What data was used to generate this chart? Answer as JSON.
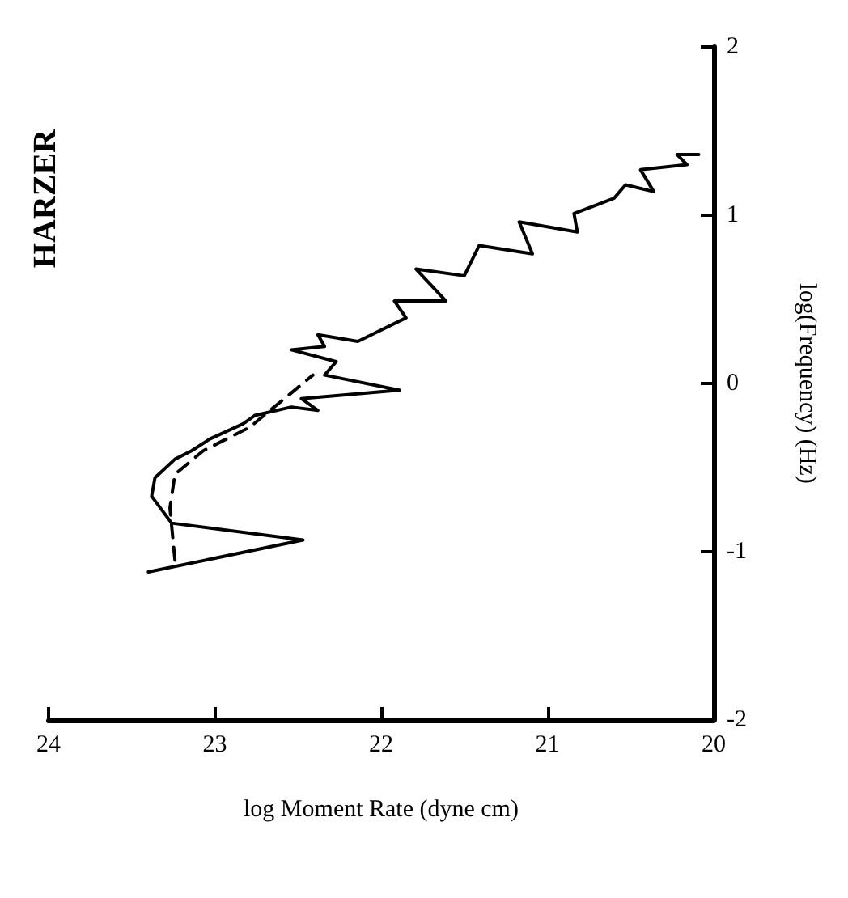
{
  "chart_data": {
    "type": "line",
    "title": "HARZER",
    "xlabel": "log Moment Rate (dyne cm)",
    "ylabel": "log(Frequency) (Hz)",
    "xlim": [
      24,
      20
    ],
    "xticks": [
      24,
      23,
      22,
      21,
      20
    ],
    "ylim": [
      -2,
      2
    ],
    "yticks": [
      -2,
      -1,
      0,
      1,
      2
    ],
    "marker": "none",
    "series": [
      {
        "color": "#000000",
        "line_style": "solid",
        "x": [
          23.4,
          22.47,
          23.26,
          23.38,
          23.36,
          23.24,
          23.14,
          23.03,
          22.83,
          22.76,
          22.54,
          22.38,
          22.48,
          21.89,
          22.34,
          22.27,
          22.54,
          22.34,
          22.38,
          22.14,
          21.85,
          21.92,
          21.61,
          21.79,
          21.5,
          21.41,
          21.09,
          21.17,
          20.82,
          20.84,
          20.6,
          20.53,
          20.36,
          20.44,
          20.16,
          20.22,
          20.09
        ],
        "values": [
          -1.12,
          -0.93,
          -0.83,
          -0.67,
          -0.56,
          -0.45,
          -0.4,
          -0.33,
          -0.24,
          -0.19,
          -0.14,
          -0.16,
          -0.09,
          -0.04,
          0.05,
          0.13,
          0.2,
          0.22,
          0.29,
          0.25,
          0.39,
          0.49,
          0.49,
          0.68,
          0.64,
          0.82,
          0.77,
          0.96,
          0.9,
          1.01,
          1.1,
          1.18,
          1.14,
          1.27,
          1.3,
          1.36,
          1.36
        ]
      },
      {
        "color": "#000000",
        "line_style": "dashed",
        "x": [
          23.24,
          23.27,
          23.24,
          23.07,
          22.79,
          22.41
        ],
        "values": [
          -1.05,
          -0.74,
          -0.54,
          -0.4,
          -0.26,
          0.05
        ]
      }
    ]
  }
}
